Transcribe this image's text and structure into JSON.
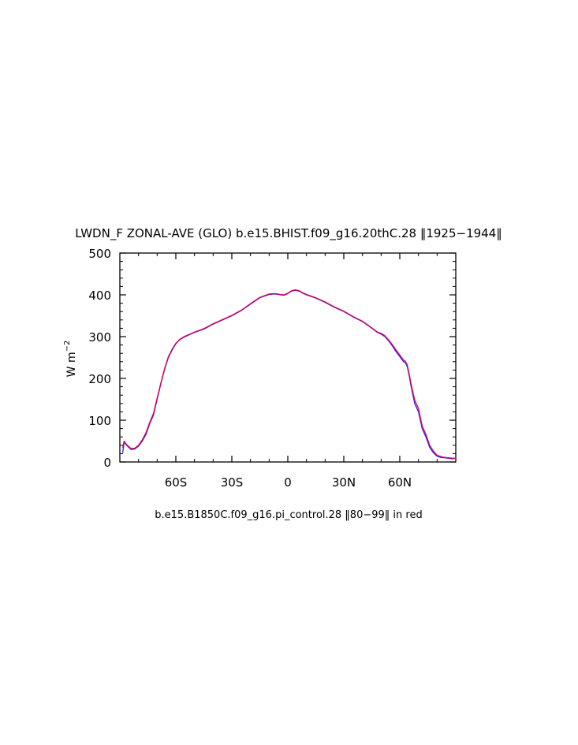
{
  "chart_data": {
    "type": "line",
    "title": "LWDN_F ZONAL-AVE (GLO) b.e15.BHIST.f09_g16.20thC.28 ‖1925−1944‖",
    "ylabel_base": "W m",
    "ylabel_sup": "−2",
    "footnote": "b.e15.B1850C.f09_g16.pi_control.28 ‖80−99‖ in red",
    "xlim": [
      -90,
      90
    ],
    "ylim": [
      0,
      500
    ],
    "x_ticks": [
      {
        "value": -60,
        "label": "60S"
      },
      {
        "value": -30,
        "label": "30S"
      },
      {
        "value": 0,
        "label": "0"
      },
      {
        "value": 30,
        "label": "30N"
      },
      {
        "value": 60,
        "label": "60N"
      }
    ],
    "y_ticks": [
      {
        "value": 0,
        "label": "0"
      },
      {
        "value": 100,
        "label": "100"
      },
      {
        "value": 200,
        "label": "200"
      },
      {
        "value": 300,
        "label": "300"
      },
      {
        "value": 400,
        "label": "400"
      },
      {
        "value": 500,
        "label": "500"
      }
    ],
    "series": [
      {
        "color": "#2020ff",
        "x": [
          -88.5,
          -87.7,
          -86.8,
          -85.5,
          -84,
          -82,
          -80,
          -78,
          -76,
          -74,
          -72,
          -70,
          -68,
          -66,
          -64,
          -62,
          -60,
          -58,
          -56,
          -54,
          -52,
          -50,
          -45,
          -40,
          -35,
          -30,
          -25,
          -20,
          -15,
          -10,
          -7,
          -4,
          -2,
          0,
          2,
          4,
          6,
          8,
          10,
          15,
          20,
          25,
          30,
          35,
          40,
          45,
          48,
          50,
          52,
          54,
          56,
          58,
          60,
          61,
          62,
          63,
          64,
          65,
          66,
          68,
          70,
          72,
          74,
          76,
          78,
          80,
          82,
          84,
          86,
          88,
          89.5
        ],
        "y": [
          22,
          48,
          42,
          36,
          30,
          31,
          38,
          50,
          66,
          92,
          112,
          150,
          188,
          222,
          250,
          268,
          283,
          292,
          298,
          302,
          306,
          310,
          318,
          330,
          340,
          350,
          362,
          378,
          393,
          401,
          402,
          400,
          399,
          403,
          409,
          411,
          409,
          404,
          400,
          392,
          382,
          370,
          360,
          347,
          336,
          320,
          310,
          306,
          300,
          290,
          278,
          264,
          252,
          246,
          240,
          238,
          228,
          208,
          182,
          140,
          120,
          80,
          60,
          35,
          22,
          14,
          11,
          10,
          9,
          8,
          8
        ]
      },
      {
        "color": "#e0004a",
        "x": [
          -88.5,
          -87.7,
          -86.8,
          -85.5,
          -84,
          -82,
          -80,
          -78,
          -76,
          -74,
          -72,
          -70,
          -68,
          -66,
          -64,
          -62,
          -60,
          -58,
          -56,
          -54,
          -52,
          -50,
          -45,
          -40,
          -35,
          -30,
          -25,
          -20,
          -15,
          -10,
          -7,
          -4,
          -2,
          0,
          2,
          4,
          6,
          8,
          10,
          15,
          20,
          25,
          30,
          35,
          40,
          45,
          48,
          50,
          52,
          54,
          56,
          58,
          60,
          61,
          62,
          63,
          64,
          65,
          66,
          68,
          70,
          72,
          74,
          76,
          78,
          80,
          82,
          84,
          86,
          88,
          89.5
        ],
        "y": [
          34,
          50,
          44,
          38,
          32,
          33,
          40,
          53,
          70,
          95,
          116,
          153,
          190,
          224,
          252,
          270,
          284,
          293,
          299,
          303,
          307,
          311,
          319,
          331,
          341,
          351,
          363,
          379,
          394,
          402,
          403,
          401,
          400,
          404,
          410,
          412,
          410,
          405,
          401,
          393,
          383,
          371,
          361,
          348,
          337,
          321,
          311,
          308,
          302,
          292,
          281,
          268,
          256,
          250,
          244,
          241,
          232,
          212,
          188,
          148,
          128,
          86,
          66,
          40,
          26,
          16,
          13,
          11,
          10,
          9,
          9
        ]
      }
    ]
  }
}
